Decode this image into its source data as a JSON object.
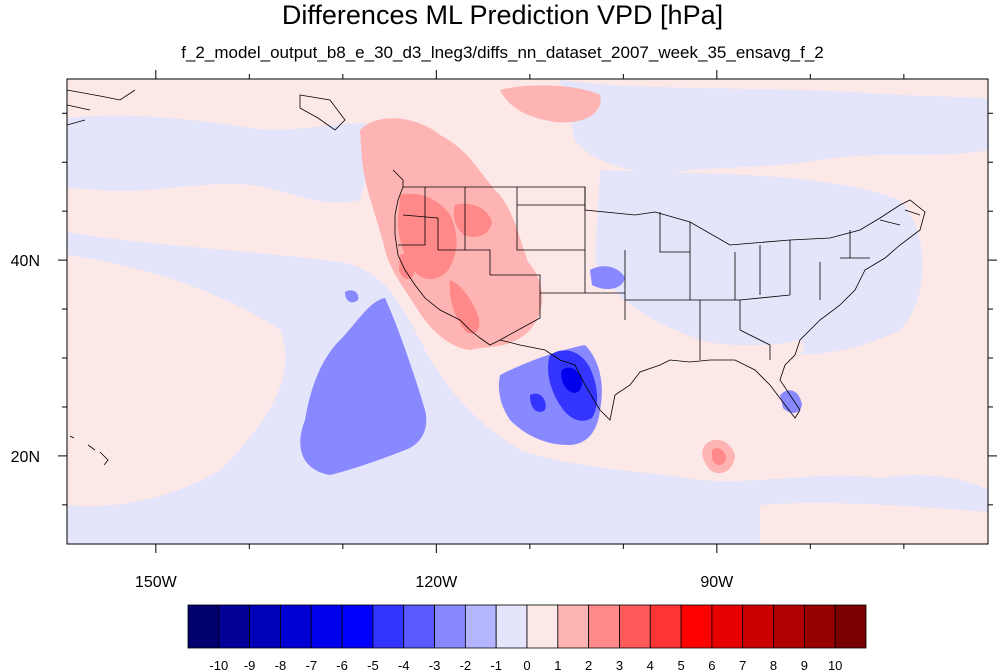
{
  "title": "Differences ML Prediction VPD [hPa]",
  "subtitle": "f_2_model_output_b8_e_30_d3_lneg3/diffs_nn_dataset_2007_week_35_ensavg_f_2",
  "map": {
    "projection": "cylindrical-equidistant",
    "lon_range": [
      -159.5,
      -61
    ],
    "lat_range": [
      11,
      58.5
    ],
    "lon_ticks": [
      {
        "value": -150,
        "label": "150W"
      },
      {
        "value": -120,
        "label": "120W"
      },
      {
        "value": -90,
        "label": "90W"
      }
    ],
    "lat_ticks": [
      {
        "value": 40,
        "label": "40N"
      },
      {
        "value": 20,
        "label": "20N"
      }
    ],
    "background_color": "#fde8e8",
    "ocean_tint": "#e4e4fa"
  },
  "colorbar": {
    "labels": [
      "-10",
      "-9",
      "-8",
      "-7",
      "-6",
      "-5",
      "-4",
      "-3",
      "-2",
      "-1",
      "0",
      "1",
      "2",
      "3",
      "4",
      "5",
      "6",
      "7",
      "8",
      "9",
      "10"
    ],
    "colors": [
      "#02006e",
      "#020096",
      "#0000b8",
      "#0000d4",
      "#0000ec",
      "#0000ff",
      "#3434ff",
      "#5a5aff",
      "#8888ff",
      "#b4b4ff",
      "#e4e4fa",
      "#fde8e8",
      "#ffb4b4",
      "#ff8888",
      "#ff5a5a",
      "#ff3434",
      "#ff0000",
      "#e60000",
      "#cc0000",
      "#b00000",
      "#960000",
      "#780000"
    ]
  }
}
